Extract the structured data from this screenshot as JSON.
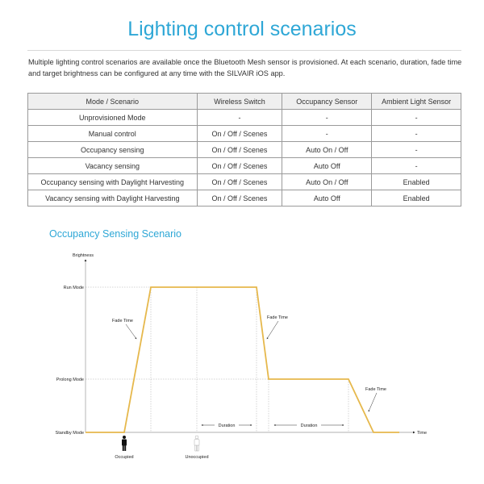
{
  "page": {
    "title": "Lighting control scenarios",
    "intro": "Multiple lighting control scenarios are available once the Bluetooth Mesh sensor is provisioned. At each scenario, duration, fade time and target brightness can be configured at any time with the SILVAIR iOS app."
  },
  "table": {
    "headers": [
      "Mode / Scenario",
      "Wireless Switch",
      "Occupancy Sensor",
      "Ambient Light Sensor"
    ],
    "rows": [
      [
        "Unprovisioned Mode",
        "-",
        "-",
        "-"
      ],
      [
        "Manual control",
        "On / Off / Scenes",
        "-",
        "-"
      ],
      [
        "Occupancy sensing",
        "On / Off / Scenes",
        "Auto On / Off",
        "-"
      ],
      [
        "Vacancy sensing",
        "On / Off / Scenes",
        "Auto Off",
        "-"
      ],
      [
        "Occupancy sensing with Daylight Harvesting",
        "On / Off / Scenes",
        "Auto On / Off",
        "Enabled"
      ],
      [
        "Vacancy sensing with Daylight Harvesting",
        "On / Off / Scenes",
        "Auto Off",
        "Enabled"
      ]
    ]
  },
  "diagram": {
    "title": "Occupancy Sensing Scenario",
    "y_axis_label": "Brightness",
    "x_axis_label": "Time",
    "levels": [
      "Run Mode",
      "Prolong Mode",
      "Standby Mode"
    ],
    "fade_label": "Fade Time",
    "duration_label": "Duration",
    "occupied_label": "Occupied",
    "unoccupied_label": "Unoccupied",
    "line_color": "#e6b84c",
    "accent_color": "#2ea7d6",
    "icons": [
      "person-occupied-icon",
      "person-unoccupied-icon"
    ]
  }
}
